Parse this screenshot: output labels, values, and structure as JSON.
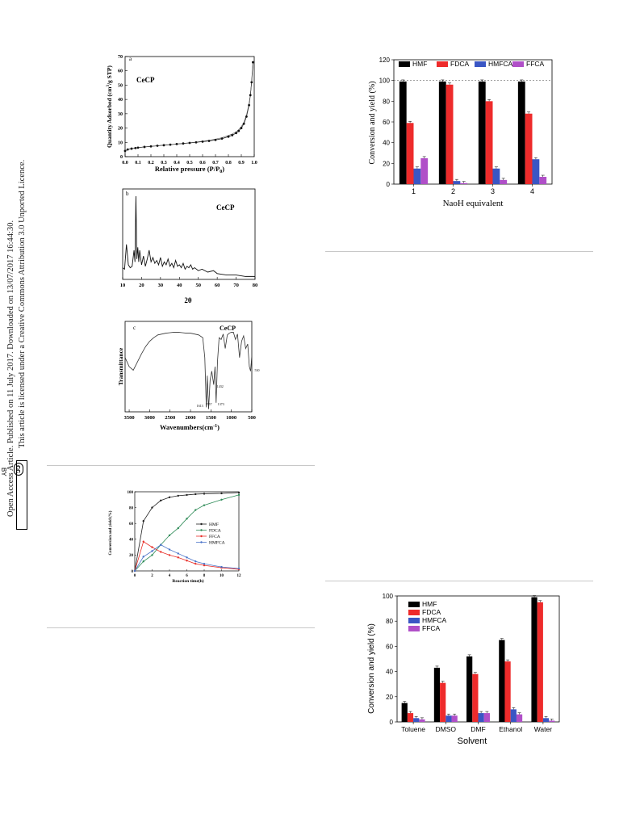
{
  "sidebar": {
    "line1": "Open Access Article. Published on 11 July 2017. Downloaded on 13/07/2017 16:44:30.",
    "line2": "This article is licensed under a Creative Commons Attribution 3.0 Unported Licence.",
    "badge_cc": "cc",
    "badge_by": "BY"
  },
  "chart_data": [
    {
      "id": "bet",
      "type": "line",
      "panel_letter": "a",
      "label": "CeCP",
      "xlabel": "Relative pressure (P/P",
      "xlabel_sub": "0",
      "xlabel_end": ")",
      "ylabel_pre": "Quantity Adsorbed (cm",
      "ylabel_sup": "3",
      "ylabel_post": "/g STP)",
      "xlim": [
        0,
        1
      ],
      "ylim": [
        0,
        70
      ],
      "xticks": [
        "0.0",
        "0.1",
        "0.2",
        "0.3",
        "0.4",
        "0.5",
        "0.6",
        "0.7",
        "0.8",
        "0.9",
        "1.0"
      ],
      "yticks": [
        "0",
        "10",
        "20",
        "30",
        "40",
        "50",
        "60",
        "70"
      ],
      "x": [
        0.0,
        0.02,
        0.05,
        0.08,
        0.1,
        0.15,
        0.2,
        0.25,
        0.3,
        0.35,
        0.4,
        0.45,
        0.5,
        0.55,
        0.6,
        0.65,
        0.7,
        0.75,
        0.8,
        0.83,
        0.86,
        0.88,
        0.9,
        0.92,
        0.94,
        0.96,
        0.97,
        0.98,
        0.99
      ],
      "values": [
        4,
        5,
        5.6,
        6,
        6.3,
        6.8,
        7.2,
        7.6,
        8,
        8.4,
        8.8,
        9.2,
        9.6,
        10,
        10.5,
        11,
        11.7,
        12.6,
        14,
        15,
        16.5,
        18,
        20,
        23,
        28,
        36,
        43,
        52,
        66
      ]
    },
    {
      "id": "xrd",
      "type": "line",
      "panel_letter": "b",
      "label": "CeCP",
      "xlabel": "2θ",
      "xlim": [
        10,
        80
      ],
      "xticks": [
        "10",
        "20",
        "30",
        "40",
        "50",
        "60",
        "70",
        "80"
      ],
      "x": [
        10,
        11,
        12,
        13,
        14,
        15,
        16,
        16.5,
        17,
        17.5,
        18,
        18.5,
        19,
        20,
        21,
        22,
        23,
        24,
        25,
        26,
        27,
        28,
        29,
        30,
        31,
        32,
        33,
        34,
        35,
        36,
        37,
        38,
        39,
        40,
        41,
        42,
        43,
        44,
        45,
        46,
        47,
        48,
        50,
        52,
        55,
        58,
        60,
        65,
        70,
        75,
        80
      ],
      "values": [
        8,
        7,
        24,
        10,
        8,
        9,
        20,
        12,
        57,
        14,
        22,
        12,
        20,
        10,
        16,
        9,
        14,
        20,
        12,
        15,
        11,
        13,
        10,
        15,
        9,
        12,
        10,
        14,
        9,
        11,
        8,
        13,
        9,
        10,
        8,
        11,
        7,
        9,
        8,
        10,
        7,
        8,
        6,
        7,
        5,
        6,
        4,
        3,
        3,
        2,
        2
      ]
    },
    {
      "id": "ftir",
      "type": "line",
      "panel_letter": "c",
      "label": "CeCP",
      "xlabel_pre": "Wavenumbers(cm",
      "xlabel_sup": "-1",
      "xlabel_post": ")",
      "ylabel": "Transmittance",
      "xlim": [
        3600,
        500
      ],
      "xticks": [
        "3500",
        "3000",
        "2500",
        "2000",
        "1500",
        "1000",
        "500"
      ],
      "annotations": [
        "1613",
        "1557",
        "1432",
        "1373",
        "530"
      ],
      "annotation_x": [
        1613,
        1557,
        1432,
        1373,
        530
      ],
      "x": [
        3600,
        3500,
        3400,
        3300,
        3200,
        3100,
        3000,
        2900,
        2800,
        2700,
        2600,
        2500,
        2400,
        2300,
        2200,
        2100,
        2000,
        1900,
        1800,
        1700,
        1650,
        1613,
        1590,
        1557,
        1520,
        1480,
        1432,
        1400,
        1373,
        1340,
        1300,
        1250,
        1200,
        1150,
        1100,
        1050,
        1000,
        950,
        900,
        850,
        800,
        750,
        700,
        650,
        600,
        560,
        530,
        500
      ],
      "values": [
        60,
        50,
        46,
        55,
        64,
        72,
        78,
        82,
        85,
        86,
        87,
        87.5,
        88,
        88,
        87.5,
        87,
        87,
        86,
        85,
        82,
        60,
        5,
        40,
        3,
        35,
        45,
        30,
        50,
        10,
        55,
        82,
        80,
        86,
        70,
        85,
        87,
        88,
        88,
        80,
        86,
        60,
        78,
        84,
        70,
        75,
        50,
        45,
        62
      ]
    },
    {
      "id": "time",
      "type": "line",
      "xlabel": "Reaction time(h)",
      "ylabel": "Conversion and yield (%)",
      "xlim": [
        0,
        12
      ],
      "ylim": [
        0,
        100
      ],
      "xticks": [
        "0",
        "2",
        "4",
        "6",
        "8",
        "10",
        "12"
      ],
      "yticks": [
        "0",
        "20",
        "40",
        "60",
        "80",
        "100"
      ],
      "series": [
        {
          "name": "HMF",
          "color": "#222222",
          "x": [
            0,
            1,
            2,
            3,
            4,
            5,
            6,
            7,
            8,
            10,
            12
          ],
          "values": [
            0,
            63,
            80,
            89,
            93,
            95,
            96,
            97,
            97.5,
            98,
            99
          ]
        },
        {
          "name": "FDCA",
          "color": "#2e8b57",
          "x": [
            0,
            1,
            2,
            3,
            4,
            5,
            6,
            7,
            8,
            10,
            12
          ],
          "values": [
            0,
            12,
            20,
            33,
            45,
            54,
            66,
            77,
            83,
            90,
            96
          ]
        },
        {
          "name": "FFCA",
          "color": "#e8302a",
          "x": [
            0,
            1,
            2,
            3,
            4,
            5,
            6,
            7,
            8,
            10,
            12
          ],
          "values": [
            0,
            37,
            30,
            24,
            20,
            17,
            13,
            9,
            7,
            4,
            2
          ]
        },
        {
          "name": "HMFCA",
          "color": "#4a74c9",
          "x": [
            0,
            1,
            2,
            3,
            4,
            5,
            6,
            7,
            8,
            10,
            12
          ],
          "values": [
            0,
            18,
            25,
            33,
            27,
            22,
            17,
            12,
            9,
            5,
            3
          ]
        }
      ]
    },
    {
      "id": "naoh",
      "type": "bar",
      "xlabel": "NaoH equivalent",
      "ylabel": "Conversion and yield (%)",
      "ylim": [
        0,
        120
      ],
      "yticks": [
        "0",
        "20",
        "40",
        "60",
        "80",
        "100",
        "120"
      ],
      "categories": [
        "1",
        "2",
        "3",
        "4"
      ],
      "reference_line": 100,
      "series": [
        {
          "name": "HMF",
          "color": "#000000",
          "values": [
            99,
            99,
            99,
            99
          ]
        },
        {
          "name": "FDCA",
          "color": "#ee2b2b",
          "values": [
            59,
            96,
            80,
            68
          ]
        },
        {
          "name": "HMFCA",
          "color": "#3a56c4",
          "values": [
            15,
            3,
            15,
            24
          ]
        },
        {
          "name": "FFCA",
          "color": "#b04fc8",
          "values": [
            25,
            1,
            4,
            7
          ]
        }
      ]
    },
    {
      "id": "solvent",
      "type": "bar",
      "xlabel": "Solvent",
      "ylabel": "Conversion and yield (%)",
      "ylim": [
        0,
        100
      ],
      "yticks": [
        "0",
        "20",
        "40",
        "60",
        "80",
        "100"
      ],
      "categories": [
        "Toluene",
        "DMSO",
        "DMF",
        "Ethanol",
        "Water"
      ],
      "series": [
        {
          "name": "HMF",
          "color": "#000000",
          "values": [
            15,
            43,
            52,
            65,
            99
          ]
        },
        {
          "name": "FDCA",
          "color": "#ee2b2b",
          "values": [
            7,
            31,
            38,
            48,
            95
          ]
        },
        {
          "name": "HMFCA",
          "color": "#3a56c4",
          "values": [
            3,
            5,
            7,
            10,
            3
          ]
        },
        {
          "name": "FFCA",
          "color": "#b04fc8",
          "values": [
            2,
            5,
            7,
            6,
            1
          ]
        }
      ]
    }
  ]
}
